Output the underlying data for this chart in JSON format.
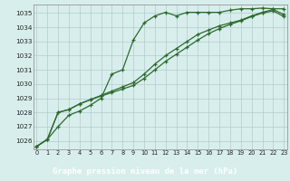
{
  "title": "Graphe pression niveau de la mer (hPa)",
  "bg_color": "#d8eeed",
  "plot_bg": "#d8eeed",
  "grid_color": "#b0ccca",
  "line_color": "#2d6a2d",
  "footer_bg": "#2d6a2d",
  "footer_text_color": "#ffffff",
  "x_labels": [
    "0",
    "1",
    "2",
    "3",
    "4",
    "5",
    "6",
    "7",
    "8",
    "9",
    "10",
    "11",
    "12",
    "13",
    "14",
    "15",
    "16",
    "17",
    "18",
    "19",
    "20",
    "21",
    "22",
    "23"
  ],
  "ylim": [
    1025.4,
    1035.6
  ],
  "yticks": [
    1026,
    1027,
    1028,
    1029,
    1030,
    1031,
    1032,
    1033,
    1034,
    1035
  ],
  "series1": [
    1025.6,
    1026.1,
    1027.0,
    1027.8,
    1028.1,
    1028.5,
    1029.0,
    1030.7,
    1031.0,
    1033.1,
    1034.3,
    1034.8,
    1035.05,
    1034.8,
    1035.05,
    1035.05,
    1035.05,
    1035.05,
    1035.2,
    1035.3,
    1035.3,
    1035.35,
    1035.3,
    1035.3
  ],
  "series2": [
    1025.6,
    1026.1,
    1028.0,
    1028.2,
    1028.6,
    1028.9,
    1029.15,
    1029.4,
    1029.65,
    1029.9,
    1030.4,
    1031.0,
    1031.6,
    1032.1,
    1032.6,
    1033.1,
    1033.55,
    1033.9,
    1034.2,
    1034.45,
    1034.75,
    1035.0,
    1035.15,
    1034.75
  ],
  "series3": [
    1025.6,
    1026.1,
    1028.0,
    1028.2,
    1028.6,
    1028.9,
    1029.2,
    1029.5,
    1029.8,
    1030.1,
    1030.7,
    1031.4,
    1032.0,
    1032.5,
    1033.0,
    1033.5,
    1033.8,
    1034.1,
    1034.3,
    1034.5,
    1034.8,
    1035.05,
    1035.25,
    1034.9
  ]
}
